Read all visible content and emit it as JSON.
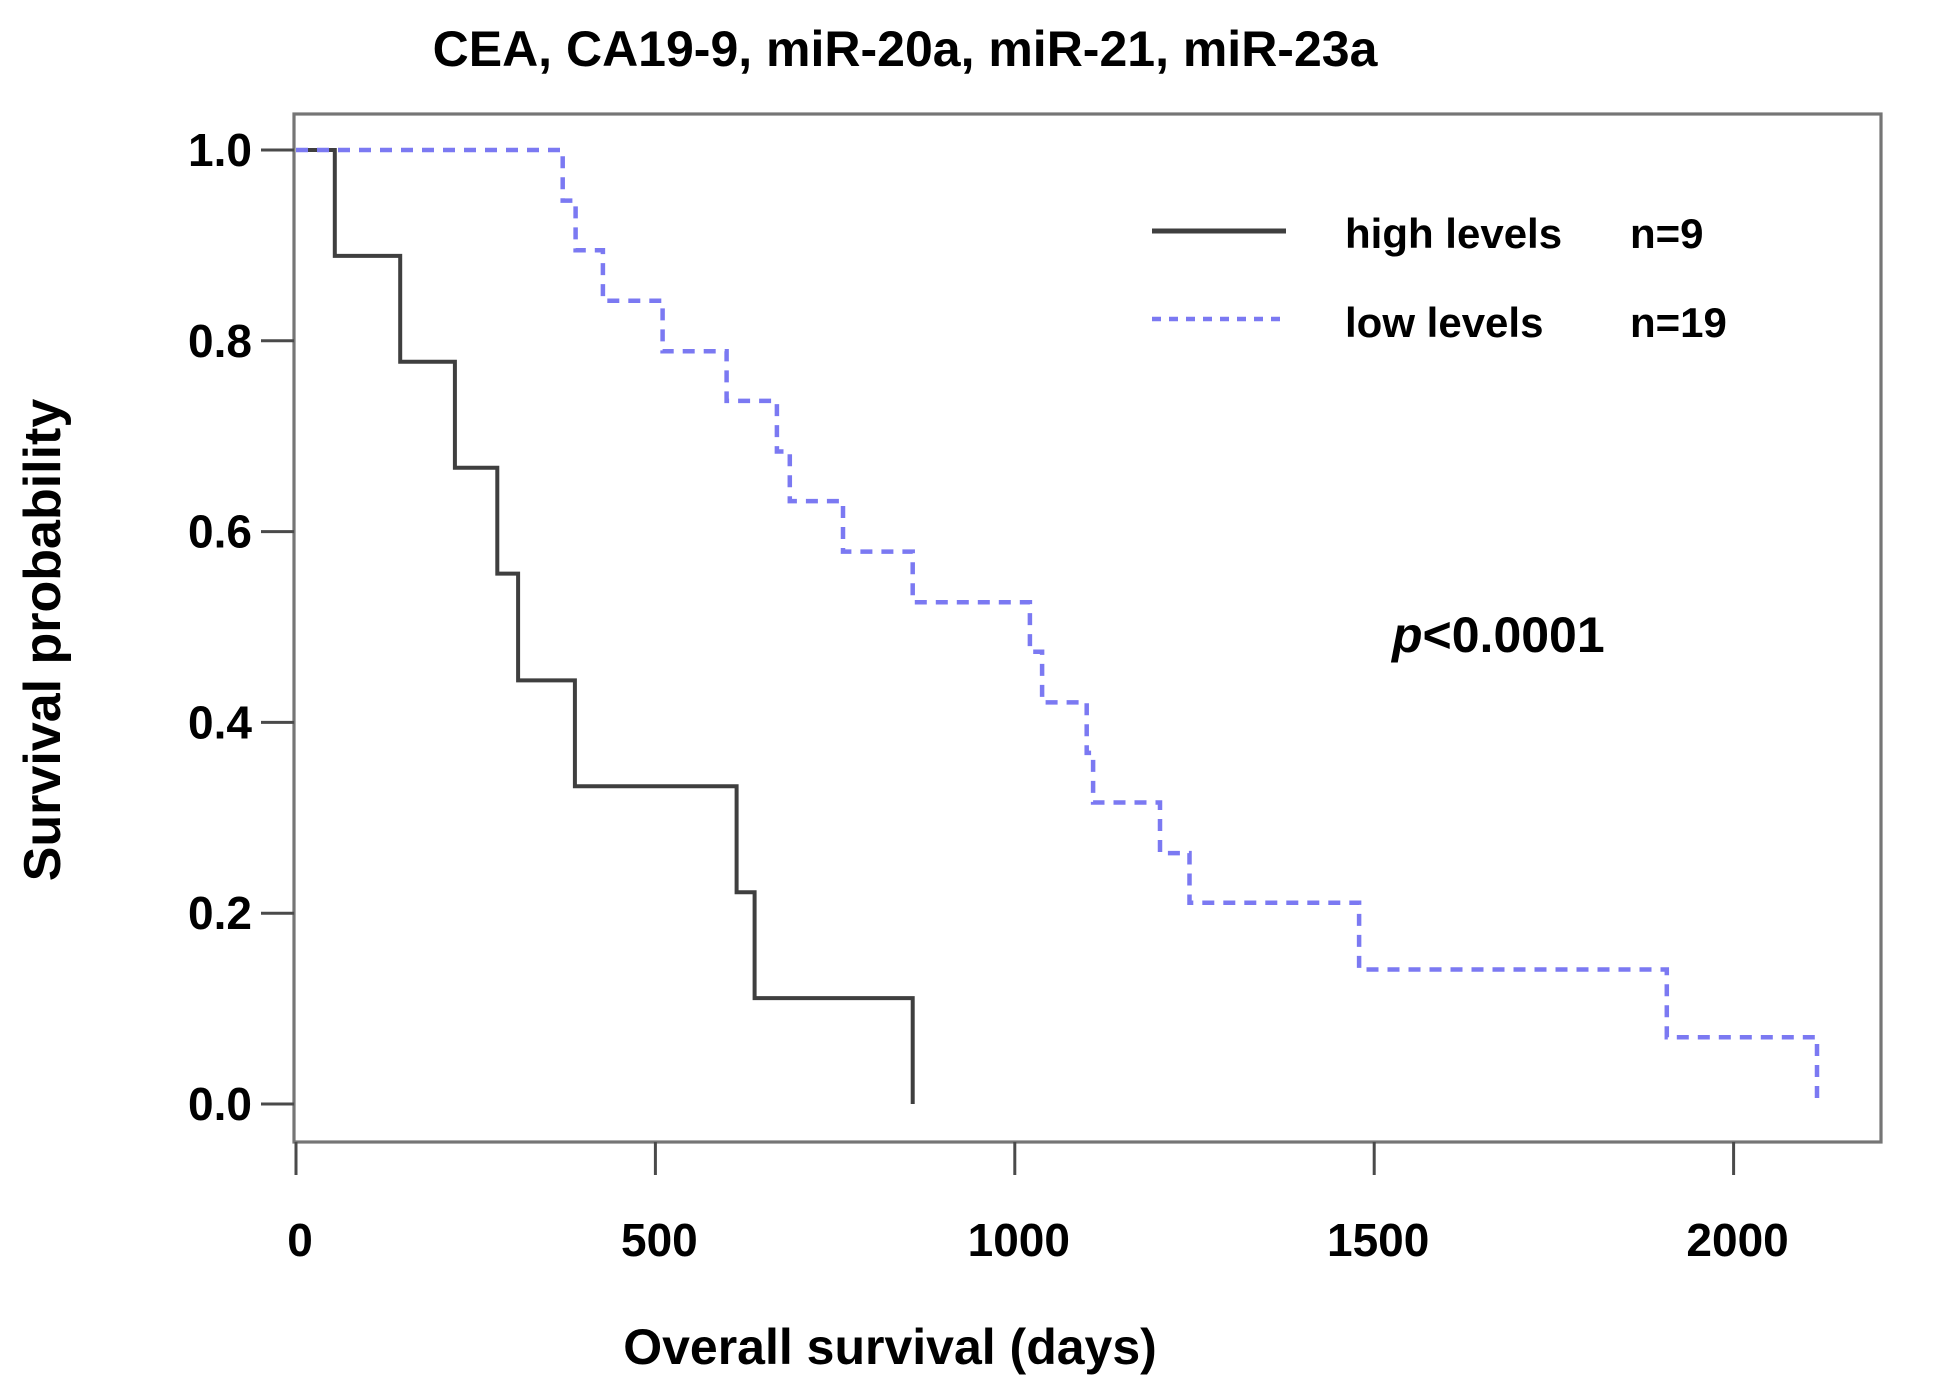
{
  "figure": {
    "title": "CEA, CA19-9, miR-20a, miR-21, miR-23a",
    "x_axis_label": "Overall survival (days)",
    "y_axis_label": "Survival probability",
    "p_value": {
      "symbol": "p",
      "comparison": "<0.0001"
    },
    "legend": {
      "items": [
        {
          "label": "high levels",
          "count": "n=9",
          "line_style": "solid",
          "color": "#3f3f3f"
        },
        {
          "label": "low levels",
          "count": "n=19",
          "line_style": "dashed",
          "color": "#7b79f2"
        }
      ]
    }
  },
  "chart_data": {
    "type": "line",
    "subtype": "kaplan-meier-step",
    "title": "CEA, CA19-9, miR-20a, miR-21, miR-23a",
    "xlabel": "Overall survival (days)",
    "ylabel": "Survival probability",
    "annotation": "p<0.0001",
    "x_ticks": [
      0,
      500,
      1000,
      1500,
      2000
    ],
    "x_tick_labels": [
      "0",
      "500",
      "1000",
      "1500",
      "2000"
    ],
    "y_ticks": [
      0.0,
      0.2,
      0.4,
      0.6,
      0.8,
      1.0
    ],
    "y_tick_labels": [
      "0.0",
      "0.2",
      "0.4",
      "0.6",
      "0.8",
      "1.0"
    ],
    "xlim": [
      -3,
      2205
    ],
    "ylim": [
      -0.04,
      1.038
    ],
    "grid": false,
    "legend_position": "top-right",
    "series": [
      {
        "name": "high levels",
        "n": 9,
        "style": "solid",
        "color": "#3f3f3f",
        "start": [
          0,
          1.0
        ],
        "drops": [
          [
            54,
            0.889
          ],
          [
            145,
            0.778
          ],
          [
            221,
            0.667
          ],
          [
            280,
            0.556
          ],
          [
            309,
            0.444
          ],
          [
            388,
            0.333
          ],
          [
            613,
            0.222
          ],
          [
            638,
            0.111
          ],
          [
            858,
            0.0
          ]
        ]
      },
      {
        "name": "low levels",
        "n": 19,
        "style": "dashed",
        "color": "#7b79f2",
        "start": [
          0,
          1.0
        ],
        "drops": [
          [
            371,
            0.947
          ],
          [
            389,
            0.895
          ],
          [
            427,
            0.842
          ],
          [
            510,
            0.789
          ],
          [
            599,
            0.737
          ],
          [
            669,
            0.684
          ],
          [
            687,
            0.632
          ],
          [
            761,
            0.579
          ],
          [
            858,
            0.526
          ],
          [
            1021,
            0.474
          ],
          [
            1038,
            0.421
          ],
          [
            1100,
            0.368
          ],
          [
            1109,
            0.316
          ],
          [
            1202,
            0.263
          ],
          [
            1243,
            0.211
          ],
          [
            1479,
            0.141
          ],
          [
            1907,
            0.07
          ],
          [
            2116,
            0.0
          ]
        ]
      }
    ]
  }
}
